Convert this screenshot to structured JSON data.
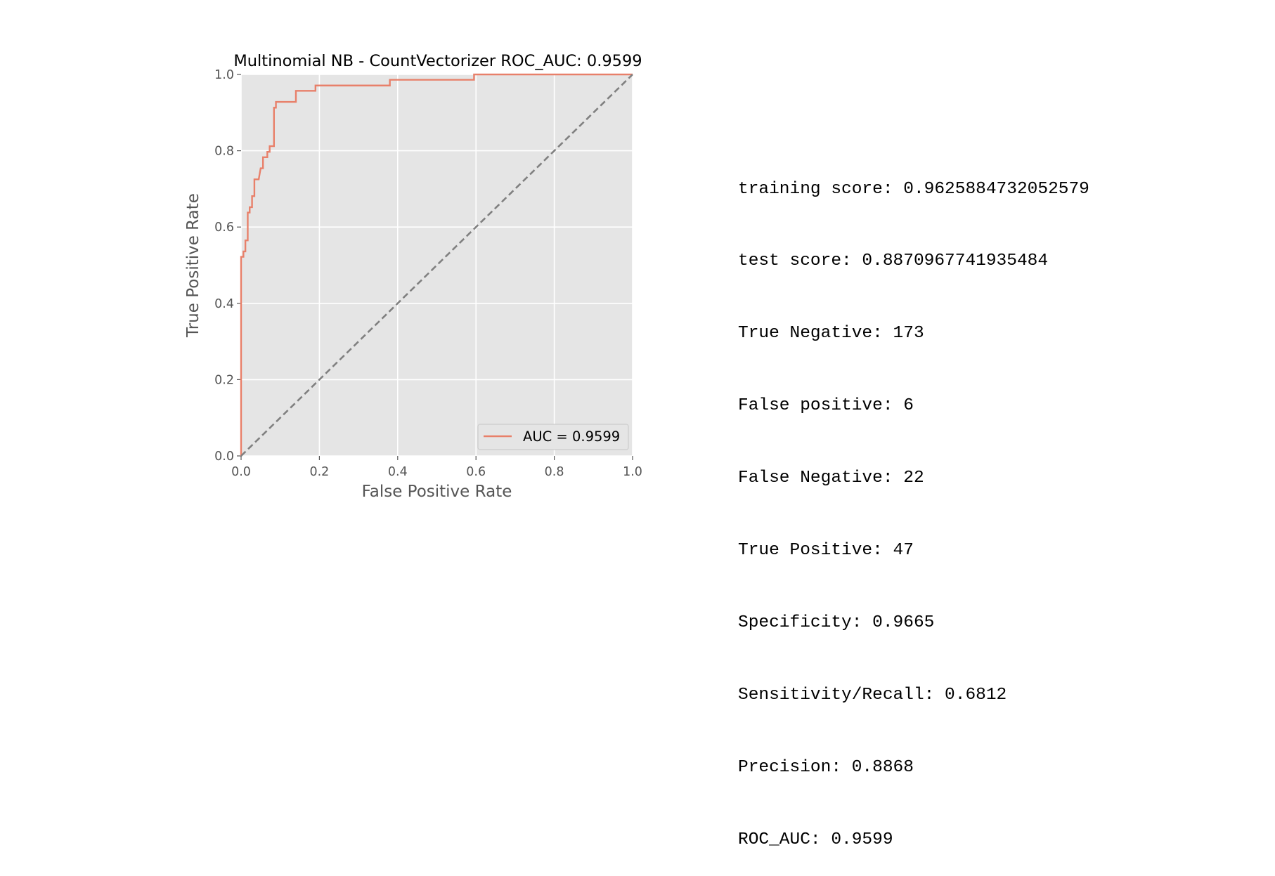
{
  "chart_data": {
    "type": "line",
    "title": "Multinomial NB - CountVectorizer ROC_AUC: 0.9599",
    "xlabel": "False Positive Rate",
    "ylabel": "True Positive Rate",
    "xlim": [
      0.0,
      1.0
    ],
    "ylim": [
      0.0,
      1.0
    ],
    "xticks": [
      "0.0",
      "0.2",
      "0.4",
      "0.6",
      "0.8",
      "1.0"
    ],
    "yticks": [
      "0.0",
      "0.2",
      "0.4",
      "0.6",
      "0.8",
      "1.0"
    ],
    "grid": true,
    "legend": {
      "placement": "lower-right"
    },
    "colors": {
      "roc": "#e8806a",
      "diagonal": "#808080",
      "plot_bg": "#e5e5e5",
      "grid": "#ffffff"
    },
    "series": [
      {
        "name": "AUC = 0.9599",
        "style": "solid",
        "x": [
          0.0,
          0.0,
          0.006,
          0.006,
          0.011,
          0.011,
          0.017,
          0.017,
          0.022,
          0.022,
          0.028,
          0.028,
          0.034,
          0.034,
          0.045,
          0.05,
          0.056,
          0.056,
          0.067,
          0.067,
          0.073,
          0.073,
          0.084,
          0.084,
          0.089,
          0.089,
          0.101,
          0.101,
          0.14,
          0.14,
          0.19,
          0.19,
          0.38,
          0.38,
          0.595,
          0.595,
          1.0
        ],
        "y": [
          0.0,
          0.522,
          0.522,
          0.536,
          0.536,
          0.565,
          0.565,
          0.638,
          0.638,
          0.652,
          0.652,
          0.681,
          0.681,
          0.725,
          0.725,
          0.754,
          0.754,
          0.783,
          0.783,
          0.797,
          0.797,
          0.812,
          0.812,
          0.913,
          0.913,
          0.928,
          0.928,
          0.928,
          0.928,
          0.957,
          0.957,
          0.971,
          0.971,
          0.986,
          0.986,
          1.0,
          1.0
        ]
      },
      {
        "name": "",
        "style": "dashed",
        "x": [
          0.0,
          1.0
        ],
        "y": [
          0.0,
          1.0
        ]
      }
    ]
  },
  "stats": [
    "training score: 0.9625884732052579",
    "test score: 0.8870967741935484",
    "True Negative: 173",
    "False positive: 6",
    "False Negative: 22",
    "True Positive: 47",
    "Specificity: 0.9665",
    "Sensitivity/Recall: 0.6812",
    "Precision: 0.8868",
    "ROC_AUC: 0.9599"
  ]
}
